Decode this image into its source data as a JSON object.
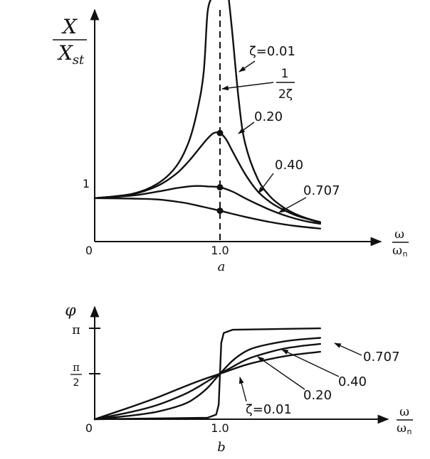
{
  "chart_data": [
    {
      "type": "line",
      "panel_label": "a",
      "y_label_numerator": "X",
      "y_label_denominator": "X",
      "y_label_denominator_sub": "st",
      "x_label_numerator": "ω",
      "x_label_denominator": "ω",
      "x_label_denominator_sub": "n",
      "origin_label": "0",
      "x_tick_label": "1.0",
      "y_tick_label": "1",
      "xlim": [
        0,
        2.0
      ],
      "ylim": [
        0,
        5.6
      ],
      "resonance_line_x": 1.0,
      "peak_annotation": {
        "numerator": "1",
        "denominator": "2ζ"
      },
      "curve_labels": [
        "ζ=0.01",
        "0.20",
        "0.40",
        "0.707"
      ],
      "series": [
        {
          "zeta": 0.01,
          "x": [
            0,
            0.3,
            0.5,
            0.65,
            0.75,
            0.82,
            0.87,
            0.9,
            0.93,
            1.07,
            1.1,
            1.15,
            1.2,
            1.3,
            1.4,
            1.5,
            1.6,
            1.7,
            1.8
          ],
          "y": [
            1.0,
            1.1,
            1.33,
            1.73,
            2.29,
            3.03,
            3.9,
            5.26,
            5.6,
            5.6,
            4.76,
            3.25,
            2.27,
            1.45,
            1.04,
            0.8,
            0.64,
            0.53,
            0.45
          ]
        },
        {
          "zeta": 0.2,
          "x": [
            0,
            0.3,
            0.5,
            0.65,
            0.75,
            0.85,
            0.9,
            0.95,
            1.0,
            1.05,
            1.1,
            1.2,
            1.3,
            1.4,
            1.5,
            1.6,
            1.7,
            1.8
          ],
          "y": [
            1.0,
            1.09,
            1.28,
            1.56,
            1.85,
            2.2,
            2.37,
            2.5,
            2.5,
            2.35,
            2.08,
            1.56,
            1.16,
            0.91,
            0.74,
            0.61,
            0.52,
            0.44
          ]
        },
        {
          "zeta": 0.4,
          "x": [
            0,
            0.3,
            0.5,
            0.65,
            0.75,
            0.8,
            0.85,
            0.9,
            1.0,
            1.1,
            1.2,
            1.3,
            1.4,
            1.5,
            1.6,
            1.7,
            1.8
          ],
          "y": [
            1.0,
            1.06,
            1.15,
            1.23,
            1.27,
            1.28,
            1.28,
            1.27,
            1.25,
            1.15,
            1.0,
            0.86,
            0.73,
            0.62,
            0.53,
            0.46,
            0.41
          ]
        },
        {
          "zeta": 0.707,
          "x": [
            0,
            0.3,
            0.5,
            0.7,
            0.85,
            1.0,
            1.2,
            1.4,
            1.6,
            1.8
          ],
          "y": [
            1.0,
            0.99,
            0.97,
            0.9,
            0.81,
            0.71,
            0.57,
            0.45,
            0.36,
            0.3
          ]
        }
      ],
      "marked_points": [
        {
          "x": 1.0,
          "y": 2.5
        },
        {
          "x": 1.0,
          "y": 1.25
        },
        {
          "x": 1.0,
          "y": 0.71
        }
      ]
    },
    {
      "type": "line",
      "panel_label": "b",
      "y_label": "φ",
      "x_label_numerator": "ω",
      "x_label_denominator": "ω",
      "x_label_denominator_sub": "n",
      "origin_label": "0",
      "x_tick_label": "1.0",
      "y_tick_labels": {
        "pi": "π",
        "half_pi_numerator": "π",
        "half_pi_denominator": "2"
      },
      "xlim": [
        0,
        2.0
      ],
      "ylim": [
        0,
        3.6
      ],
      "curve_labels": [
        "ζ=0.01",
        "0.20",
        "0.40",
        "0.707"
      ],
      "series": [
        {
          "zeta": 0.01,
          "x": [
            0,
            0.9,
            0.97,
            0.99,
            1.0,
            1.01,
            1.03,
            1.1,
            1.8
          ],
          "y": [
            0.0,
            0.05,
            0.16,
            0.5,
            1.5708,
            2.64,
            2.98,
            3.09,
            3.14
          ]
        },
        {
          "zeta": 0.2,
          "x": [
            0,
            0.3,
            0.5,
            0.7,
            0.8,
            0.9,
            1.0,
            1.1,
            1.2,
            1.3,
            1.5,
            1.65,
            1.8
          ],
          "y": [
            0.0,
            0.13,
            0.26,
            0.5,
            0.73,
            1.08,
            1.5708,
            2.02,
            2.33,
            2.5,
            2.68,
            2.76,
            2.81
          ]
        },
        {
          "zeta": 0.4,
          "x": [
            0,
            0.3,
            0.5,
            0.7,
            0.8,
            0.9,
            1.0,
            1.1,
            1.2,
            1.3,
            1.5,
            1.65,
            1.8
          ],
          "y": [
            0.0,
            0.26,
            0.49,
            0.83,
            1.05,
            1.31,
            1.5708,
            1.81,
            2.04,
            2.2,
            2.43,
            2.53,
            2.6
          ]
        },
        {
          "zeta": 0.707,
          "x": [
            0,
            0.3,
            0.5,
            0.7,
            0.85,
            1.0,
            1.2,
            1.4,
            1.6,
            1.8
          ],
          "y": [
            0.0,
            0.44,
            0.75,
            1.1,
            1.35,
            1.5708,
            1.87,
            2.08,
            2.23,
            2.33
          ]
        }
      ]
    }
  ]
}
